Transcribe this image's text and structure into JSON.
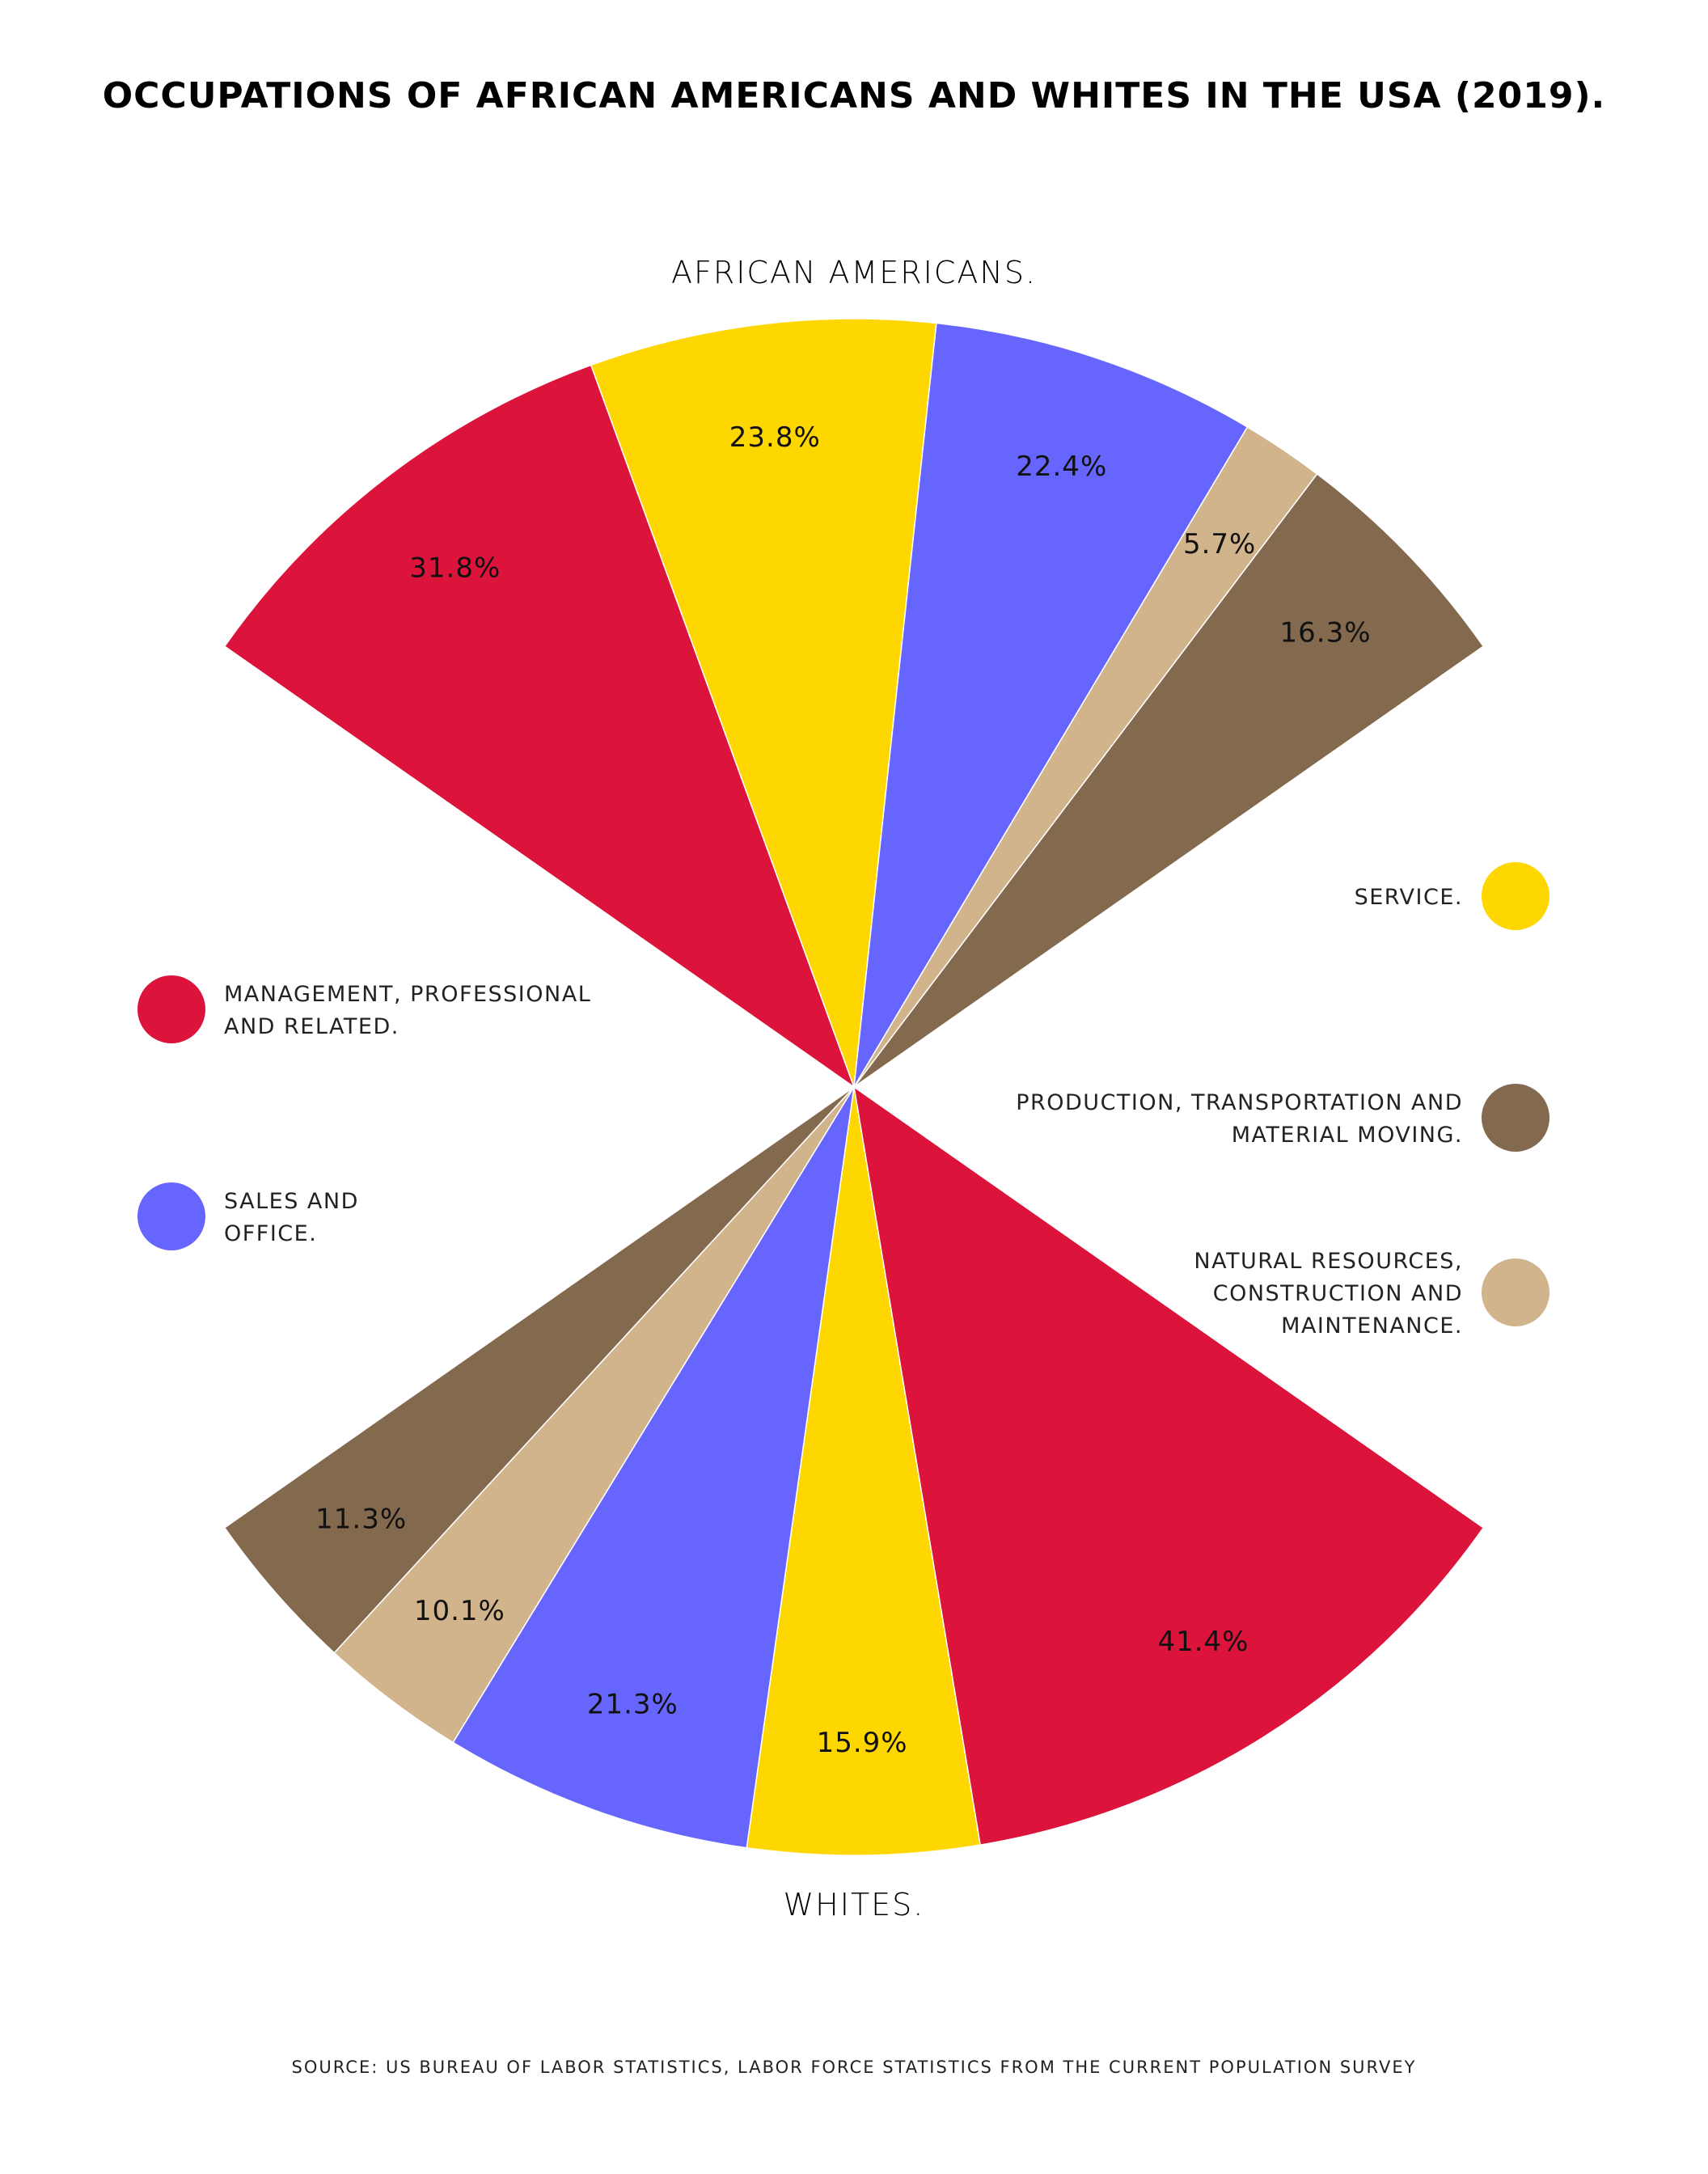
{
  "title": "OCCUPATIONS OF AFRICAN AMERICANS AND WHITES IN THE USA (2019).",
  "source": "SOURCE: US BUREAU OF LABOR STATISTICS, LABOR FORCE STATISTICS FROM THE CURRENT POPULATION SURVEY",
  "chart_data": {
    "type": "pie",
    "categories": [
      "MANAGEMENT, PROFESSIONAL AND RELATED.",
      "SERVICE.",
      "SALES AND OFFICE.",
      "NATURAL RESOURCES, CONSTRUCTION AND MAINTENANCE.",
      "PRODUCTION, TRANSPORTATION AND MATERIAL MOVING."
    ],
    "colors": [
      "#DC143C",
      "#FFD700",
      "#6666FF",
      "#D2B48C",
      "#83694E"
    ],
    "series": [
      {
        "name": "AFRICAN AMERICANS.",
        "values": [
          31.8,
          23.8,
          22.4,
          5.7,
          16.3
        ],
        "labels": [
          "31.8%",
          "23.8%",
          "22.4%",
          "5.7%",
          "16.3%"
        ]
      },
      {
        "name": "WHITES.",
        "values": [
          41.4,
          15.9,
          21.3,
          10.1,
          11.3
        ],
        "labels": [
          "41.4%",
          "15.9%",
          "21.3%",
          "10.1%",
          "11.3%"
        ]
      }
    ],
    "legend": [
      {
        "lines": [
          "MANAGEMENT, PROFESSIONAL",
          "AND RELATED."
        ],
        "color": "#DC143C",
        "side": "left"
      },
      {
        "lines": [
          "SALES AND",
          "OFFICE."
        ],
        "color": "#6666FF",
        "side": "left"
      },
      {
        "lines": [
          "SERVICE."
        ],
        "color": "#FFD700",
        "side": "right"
      },
      {
        "lines": [
          "PRODUCTION, TRANSPORTATION AND",
          "MATERIAL MOVING."
        ],
        "color": "#83694E",
        "side": "right"
      },
      {
        "lines": [
          "NATURAL RESOURCES,",
          "CONSTRUCTION AND",
          "MAINTENANCE."
        ],
        "color": "#D2B48C",
        "side": "right"
      }
    ]
  }
}
